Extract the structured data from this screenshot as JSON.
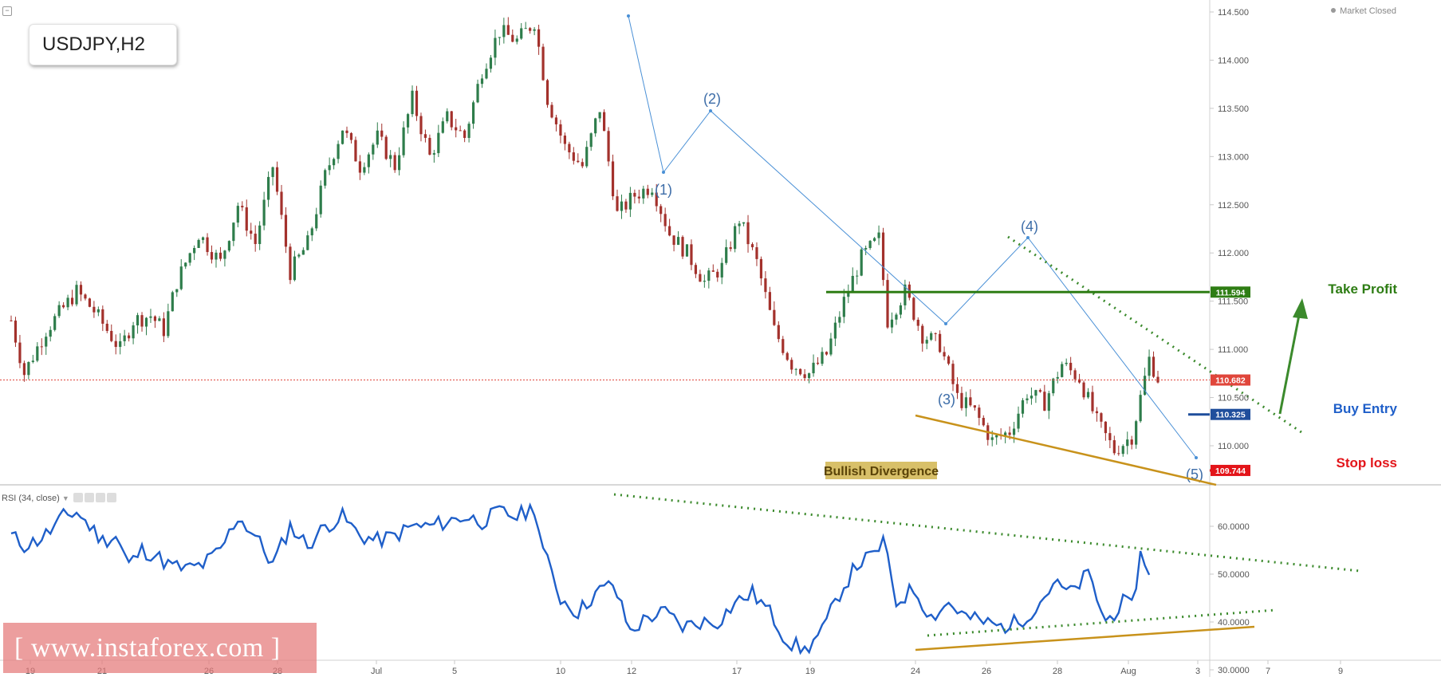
{
  "header": {
    "symbol": "USDJPY,H2",
    "market_status": "Market Closed"
  },
  "rsi_legend": {
    "label": "RSI (34, close)"
  },
  "watermark": {
    "text": "[ www.instaforex.com ]"
  },
  "labels": {
    "take_profit": "Take Profit",
    "buy_entry": "Buy Entry",
    "stop_loss": "Stop loss",
    "bullish_divergence": "Bullish Divergence",
    "wave1": "(1)",
    "wave2": "(2)",
    "wave3": "(3)",
    "wave4": "(4)",
    "wave5": "(5)"
  },
  "colors": {
    "take_profit": "#2e7d14",
    "buy_entry": "#1f4e9c",
    "stop_loss": "#e3151a",
    "current_price": "#e0463b",
    "rsi_line": "#1f5fc9",
    "divergence": "#c8921b",
    "candle_up": "#2e7d4b",
    "candle_down": "#a3312c",
    "wave_line": "#4a90d6"
  },
  "chart_data": {
    "type": "candlestick",
    "symbol": "USDJPY",
    "timeframe": "H2",
    "price_axis": {
      "ylim": [
        109.55,
        114.65
      ],
      "ticks": [
        "114.500",
        "114.000",
        "113.500",
        "113.000",
        "112.500",
        "112.000",
        "111.500",
        "111.000",
        "110.500",
        "110.000"
      ]
    },
    "x_axis": {
      "tick_labels": [
        "19",
        "21",
        "26",
        "28",
        "Jul",
        "5",
        "10",
        "12",
        "17",
        "19",
        "24",
        "26",
        "28",
        "Aug",
        "3",
        "7",
        "9"
      ]
    },
    "levels": [
      {
        "name": "Take Profit",
        "value": 111.594,
        "label": "111.594"
      },
      {
        "name": "Current Price",
        "value": 110.682,
        "label": "110.682"
      },
      {
        "name": "Buy Entry",
        "value": 110.325,
        "label": "110.325"
      },
      {
        "name": "Stop loss",
        "value": 109.744,
        "label": "109.744"
      }
    ],
    "price_trend": [
      [
        0,
        111.3
      ],
      [
        3,
        110.75
      ],
      [
        8,
        111.2
      ],
      [
        15,
        111.6
      ],
      [
        19,
        111.4
      ],
      [
        25,
        111.0
      ],
      [
        28,
        111.3
      ],
      [
        32,
        111.35
      ],
      [
        35,
        111.2
      ],
      [
        38,
        111.7
      ],
      [
        43,
        112.2
      ],
      [
        48,
        111.9
      ],
      [
        52,
        112.5
      ],
      [
        56,
        112.1
      ],
      [
        60,
        112.9
      ],
      [
        64,
        111.8
      ],
      [
        68,
        112.1
      ],
      [
        72,
        112.8
      ],
      [
        76,
        113.3
      ],
      [
        80,
        112.9
      ],
      [
        84,
        113.2
      ],
      [
        88,
        112.9
      ],
      [
        92,
        113.6
      ],
      [
        96,
        113.0
      ],
      [
        100,
        113.4
      ],
      [
        104,
        113.2
      ],
      [
        108,
        113.9
      ],
      [
        112,
        114.3
      ],
      [
        116,
        114.2
      ],
      [
        120,
        114.4
      ],
      [
        123,
        113.6
      ],
      [
        127,
        113.1
      ],
      [
        131,
        112.9
      ],
      [
        135,
        113.5
      ],
      [
        139,
        112.4
      ],
      [
        143,
        112.6
      ],
      [
        147,
        112.7
      ],
      [
        151,
        112.2
      ],
      [
        155,
        112.0
      ],
      [
        159,
        111.7
      ],
      [
        163,
        111.85
      ],
      [
        167,
        112.35
      ],
      [
        171,
        111.9
      ],
      [
        175,
        111.2
      ],
      [
        179,
        110.85
      ],
      [
        183,
        110.75
      ],
      [
        187,
        110.95
      ],
      [
        191,
        111.5
      ],
      [
        195,
        111.95
      ],
      [
        199,
        112.15
      ],
      [
        201,
        111.3
      ],
      [
        205,
        111.6
      ],
      [
        209,
        111.15
      ],
      [
        213,
        111.05
      ],
      [
        217,
        110.5
      ],
      [
        221,
        110.35
      ],
      [
        225,
        110.05
      ],
      [
        229,
        110.15
      ],
      [
        233,
        110.55
      ],
      [
        237,
        110.45
      ],
      [
        241,
        110.85
      ],
      [
        245,
        110.7
      ],
      [
        249,
        110.25
      ],
      [
        253,
        109.95
      ],
      [
        257,
        110.1
      ],
      [
        261,
        110.9
      ],
      [
        263,
        110.7
      ]
    ],
    "rsi": {
      "period": 34,
      "ylim": [
        28,
        68
      ],
      "ticks": [
        "60.0000",
        "50.0000",
        "40.0000",
        "30.0000"
      ],
      "values": [
        [
          0,
          58
        ],
        [
          3,
          56
        ],
        [
          6,
          57
        ],
        [
          9,
          59
        ],
        [
          12,
          62
        ],
        [
          15,
          63
        ],
        [
          18,
          60
        ],
        [
          21,
          57
        ],
        [
          24,
          58
        ],
        [
          27,
          52
        ],
        [
          30,
          55
        ],
        [
          33,
          54
        ],
        [
          36,
          52
        ],
        [
          40,
          51
        ],
        [
          44,
          52
        ],
        [
          48,
          55
        ],
        [
          52,
          62
        ],
        [
          56,
          58
        ],
        [
          60,
          52
        ],
        [
          64,
          60
        ],
        [
          68,
          56
        ],
        [
          72,
          60
        ],
        [
          76,
          62
        ],
        [
          80,
          58
        ],
        [
          84,
          57
        ],
        [
          88,
          58
        ],
        [
          92,
          60
        ],
        [
          96,
          60
        ],
        [
          100,
          61
        ],
        [
          104,
          62
        ],
        [
          108,
          61
        ],
        [
          112,
          63
        ],
        [
          116,
          62
        ],
        [
          120,
          64
        ],
        [
          122,
          55
        ],
        [
          126,
          45
        ],
        [
          130,
          42
        ],
        [
          134,
          46
        ],
        [
          138,
          48
        ],
        [
          142,
          38
        ],
        [
          146,
          41
        ],
        [
          150,
          42
        ],
        [
          154,
          39
        ],
        [
          158,
          40
        ],
        [
          162,
          40
        ],
        [
          166,
          44
        ],
        [
          170,
          46
        ],
        [
          174,
          42
        ],
        [
          178,
          36
        ],
        [
          182,
          34
        ],
        [
          186,
          38
        ],
        [
          190,
          46
        ],
        [
          194,
          52
        ],
        [
          198,
          54
        ],
        [
          200,
          57
        ],
        [
          203,
          44
        ],
        [
          207,
          47
        ],
        [
          211,
          41
        ],
        [
          215,
          44
        ],
        [
          219,
          41
        ],
        [
          223,
          40
        ],
        [
          227,
          39
        ],
        [
          231,
          40
        ],
        [
          235,
          43
        ],
        [
          239,
          48
        ],
        [
          243,
          46
        ],
        [
          247,
          50
        ],
        [
          251,
          40
        ],
        [
          255,
          44
        ],
        [
          257,
          43
        ],
        [
          259,
          54
        ],
        [
          261,
          51
        ]
      ]
    },
    "annotations": [
      "(1)",
      "(2)",
      "(3)",
      "(4)",
      "(5)",
      "Take Profit",
      "Buy Entry",
      "Stop loss",
      "Bullish Divergence"
    ]
  }
}
